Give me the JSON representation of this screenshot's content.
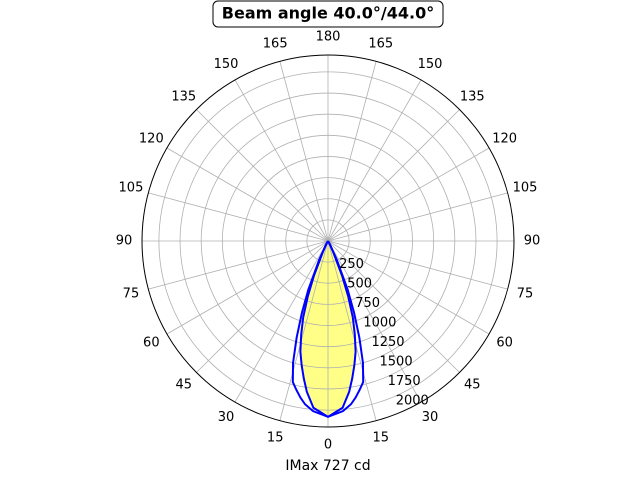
{
  "chart_data": {
    "type": "polar",
    "title": "Beam angle 40.0°/44.0°",
    "xlabel": "IMax 727 cd",
    "x": [
      -40,
      -30,
      -25,
      -22,
      -20,
      -18,
      -16,
      -14,
      -12,
      -10,
      -8,
      -5,
      0,
      5,
      8,
      10,
      12,
      14,
      16,
      18,
      20,
      22,
      25,
      30,
      40
    ],
    "series": [
      {
        "color": "#0000ff",
        "values": [
          0,
          50,
          250,
          620,
          900,
          1200,
          1500,
          1720,
          1800,
          1880,
          1950,
          2020,
          2080,
          2020,
          1950,
          1880,
          1800,
          1720,
          1500,
          1200,
          900,
          620,
          250,
          50,
          0
        ]
      },
      {
        "color": "#0000ff",
        "fill": "#ffff88",
        "values": [
          0,
          30,
          150,
          450,
          700,
          950,
          1150,
          1350,
          1500,
          1650,
          1800,
          1980,
          2080,
          1980,
          1800,
          1650,
          1500,
          1350,
          1150,
          950,
          700,
          450,
          150,
          30,
          0
        ]
      }
    ],
    "rlim": [
      0,
      2200
    ],
    "rticks": [
      250,
      500,
      750,
      1000,
      1250,
      1500,
      1750,
      2000
    ],
    "thetaticks": [
      0,
      15,
      30,
      45,
      60,
      75,
      90,
      105,
      120,
      135,
      150,
      165,
      180,
      {
        "value": 195,
        "label": "165"
      },
      {
        "value": 210,
        "label": "150"
      },
      {
        "value": 225,
        "label": "135"
      },
      {
        "value": 240,
        "label": "120"
      },
      {
        "value": 255,
        "label": "105"
      },
      {
        "value": 270,
        "label": "90"
      },
      {
        "value": 285,
        "label": "75"
      },
      {
        "value": 300,
        "label": "60"
      },
      {
        "value": 315,
        "label": "45"
      },
      {
        "value": 330,
        "label": "30"
      },
      {
        "value": 345,
        "label": "15"
      }
    ],
    "grid": true
  }
}
